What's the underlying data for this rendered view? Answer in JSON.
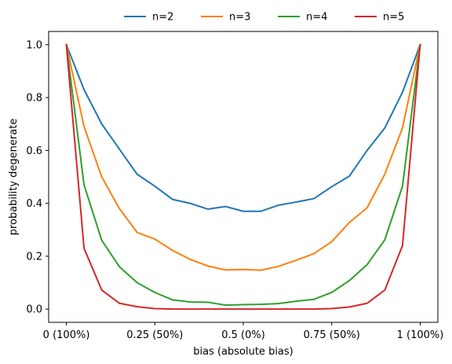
{
  "chart_data": {
    "type": "line",
    "title": "",
    "xlabel": "bias (absolute bias)",
    "ylabel": "probability degenerate",
    "xlim": [
      -0.05,
      1.05
    ],
    "ylim": [
      -0.05,
      1.05
    ],
    "x": [
      0.0,
      0.05,
      0.1,
      0.15,
      0.2,
      0.25,
      0.3,
      0.35,
      0.4,
      0.45,
      0.5,
      0.55,
      0.6,
      0.65,
      0.7,
      0.75,
      0.8,
      0.85,
      0.9,
      0.95,
      1.0
    ],
    "x_ticks": [
      0,
      0.25,
      0.5,
      0.75,
      1
    ],
    "x_tick_labels": [
      "0 (100%)",
      "0.25 (50%)",
      "0.5 (0%)",
      "0.75 (50%)",
      "1 (100%)"
    ],
    "y_ticks": [
      0.0,
      0.2,
      0.4,
      0.6,
      0.8,
      1.0
    ],
    "y_tick_labels": [
      "0.0",
      "0.2",
      "0.4",
      "0.6",
      "0.8",
      "1.0"
    ],
    "grid": false,
    "legend_position": "top-center",
    "series": [
      {
        "name": "n=2",
        "color": "#1f77b4",
        "values": [
          1.0,
          0.83,
          0.7,
          0.605,
          0.51,
          0.465,
          0.415,
          0.4,
          0.378,
          0.388,
          0.37,
          0.37,
          0.393,
          0.405,
          0.418,
          0.463,
          0.503,
          0.6,
          0.685,
          0.82,
          1.0
        ]
      },
      {
        "name": "n=3",
        "color": "#ff7f0e",
        "values": [
          1.0,
          0.69,
          0.5,
          0.38,
          0.29,
          0.265,
          0.222,
          0.188,
          0.163,
          0.148,
          0.15,
          0.147,
          0.162,
          0.185,
          0.21,
          0.255,
          0.328,
          0.383,
          0.51,
          0.685,
          1.0
        ]
      },
      {
        "name": "n=4",
        "color": "#2ca02c",
        "values": [
          1.0,
          0.47,
          0.26,
          0.16,
          0.1,
          0.063,
          0.035,
          0.027,
          0.026,
          0.015,
          0.017,
          0.018,
          0.021,
          0.03,
          0.037,
          0.063,
          0.108,
          0.168,
          0.262,
          0.465,
          1.0
        ]
      },
      {
        "name": "n=5",
        "color": "#d62728",
        "values": [
          1.0,
          0.23,
          0.072,
          0.022,
          0.009,
          0.002,
          0.0,
          0.0,
          0.0,
          0.0,
          0.0,
          0.0,
          0.0,
          0.0,
          0.0,
          0.002,
          0.008,
          0.022,
          0.072,
          0.24,
          1.0
        ]
      }
    ]
  }
}
